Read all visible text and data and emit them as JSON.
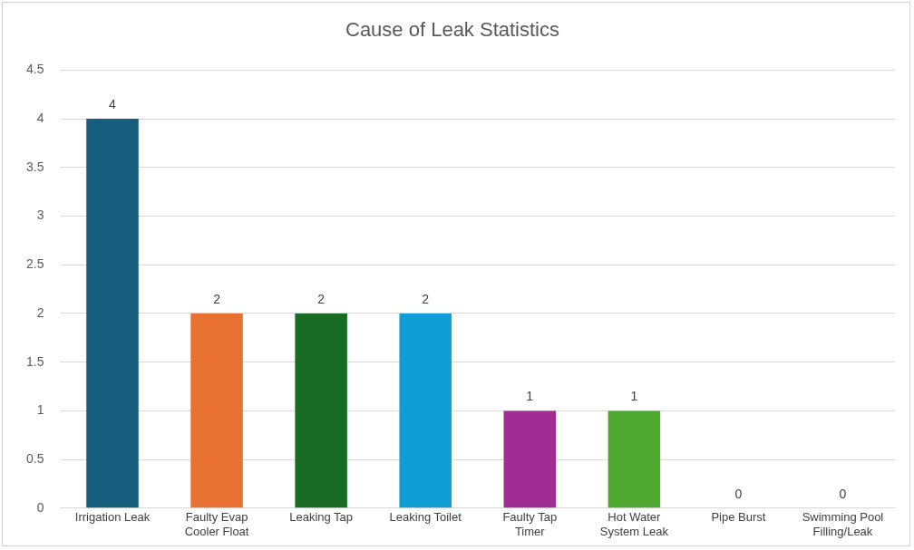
{
  "chart_data": {
    "type": "bar",
    "title": "Cause of Leak Statistics",
    "categories": [
      "Irrigation Leak",
      "Faulty Evap Cooler Float",
      "Leaking Tap",
      "Leaking Toilet",
      "Faulty Tap Timer",
      "Hot Water System Leak",
      "Pipe Burst",
      "Swimming Pool Filling/Leak"
    ],
    "values": [
      4,
      2,
      2,
      2,
      1,
      1,
      0,
      0
    ],
    "colors": [
      "#175d7e",
      "#e97132",
      "#196b24",
      "#0f9ed5",
      "#a02b93",
      "#4ea72e",
      "#c0c0c0",
      "#c0c0c0"
    ],
    "ylim": [
      0,
      4.5
    ],
    "yticks": [
      0,
      0.5,
      1,
      1.5,
      2,
      2.5,
      3,
      3.5,
      4,
      4.5
    ],
    "grid": "y",
    "legend": false,
    "data_labels": true
  }
}
